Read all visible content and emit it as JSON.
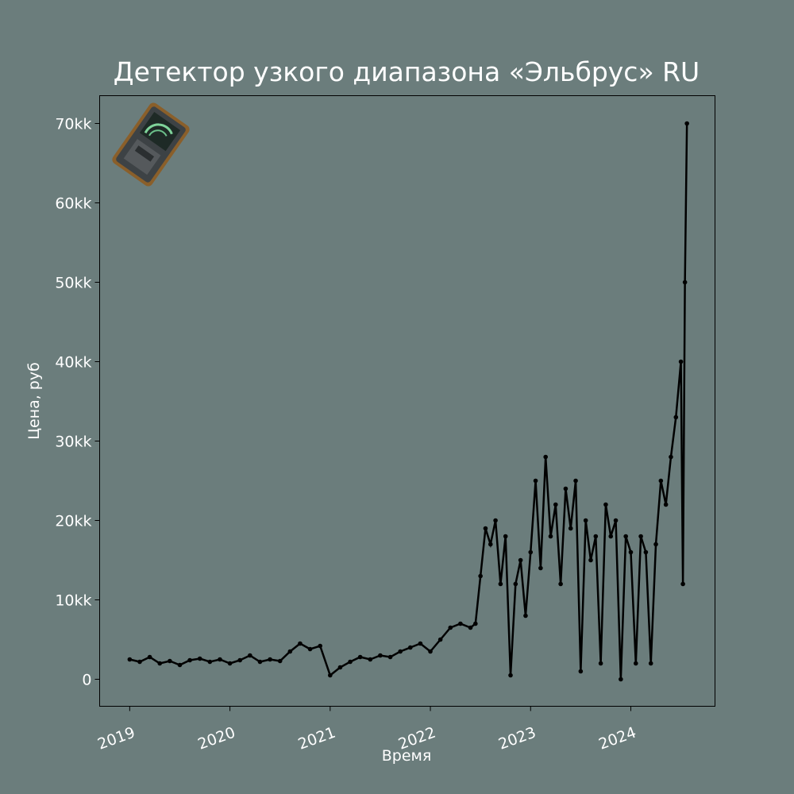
{
  "chart_data": {
    "type": "line",
    "title": "Детектор узкого диапазона «Эльбрус» RU",
    "x_label": "Время",
    "y_label": "Цена, руб",
    "color": "#000000",
    "x": [
      2019.0,
      2019.1,
      2019.2,
      2019.3,
      2019.4,
      2019.5,
      2019.6,
      2019.7,
      2019.8,
      2019.9,
      2020.0,
      2020.1,
      2020.2,
      2020.3,
      2020.4,
      2020.5,
      2020.6,
      2020.7,
      2020.8,
      2020.9,
      2021.0,
      2021.1,
      2021.2,
      2021.3,
      2021.4,
      2021.5,
      2021.6,
      2021.7,
      2021.8,
      2021.9,
      2022.0,
      2022.1,
      2022.2,
      2022.3,
      2022.4,
      2022.45,
      2022.5,
      2022.55,
      2022.6,
      2022.65,
      2022.7,
      2022.75,
      2022.8,
      2022.85,
      2022.9,
      2022.95,
      2023.0,
      2023.05,
      2023.1,
      2023.15,
      2023.2,
      2023.25,
      2023.3,
      2023.35,
      2023.4,
      2023.45,
      2023.5,
      2023.55,
      2023.6,
      2023.65,
      2023.7,
      2023.75,
      2023.8,
      2023.85,
      2023.9,
      2023.95,
      2024.0,
      2024.05,
      2024.1,
      2024.15,
      2024.2,
      2024.25,
      2024.3,
      2024.35,
      2024.4,
      2024.45,
      2024.5,
      2024.52,
      2024.54,
      2024.56
    ],
    "values": [
      2.5,
      2.2,
      2.8,
      2.0,
      2.3,
      1.8,
      2.4,
      2.6,
      2.2,
      2.5,
      2.0,
      2.4,
      3.0,
      2.2,
      2.5,
      2.3,
      3.5,
      4.5,
      3.8,
      4.2,
      0.5,
      1.5,
      2.2,
      2.8,
      2.5,
      3.0,
      2.8,
      3.5,
      4.0,
      4.5,
      3.5,
      5.0,
      6.5,
      7.0,
      6.5,
      7.0,
      13,
      19,
      17,
      20,
      12,
      18,
      0.5,
      12,
      15,
      8,
      16,
      25,
      14,
      28,
      18,
      22,
      12,
      24,
      19,
      25,
      1,
      20,
      15,
      18,
      2,
      22,
      18,
      20,
      0,
      18,
      16,
      2,
      18,
      16,
      2,
      17,
      25,
      22,
      28,
      33,
      40,
      12,
      50,
      70
    ],
    "xlim": [
      2018.7,
      2024.84
    ],
    "xticks": [
      2019,
      2020,
      2021,
      2022,
      2023,
      2024
    ],
    "ylim": [
      -3.4,
      73.5
    ],
    "yticks": [
      0,
      {
        "value": 10,
        "label": "10kk"
      },
      {
        "value": 20,
        "label": "20kk"
      },
      {
        "value": 30,
        "label": "30kk"
      },
      {
        "value": 40,
        "label": "40kk"
      },
      {
        "value": 50,
        "label": "50kk"
      },
      {
        "value": 60,
        "label": "60kk"
      },
      {
        "value": 70,
        "label": "70kk"
      }
    ]
  }
}
